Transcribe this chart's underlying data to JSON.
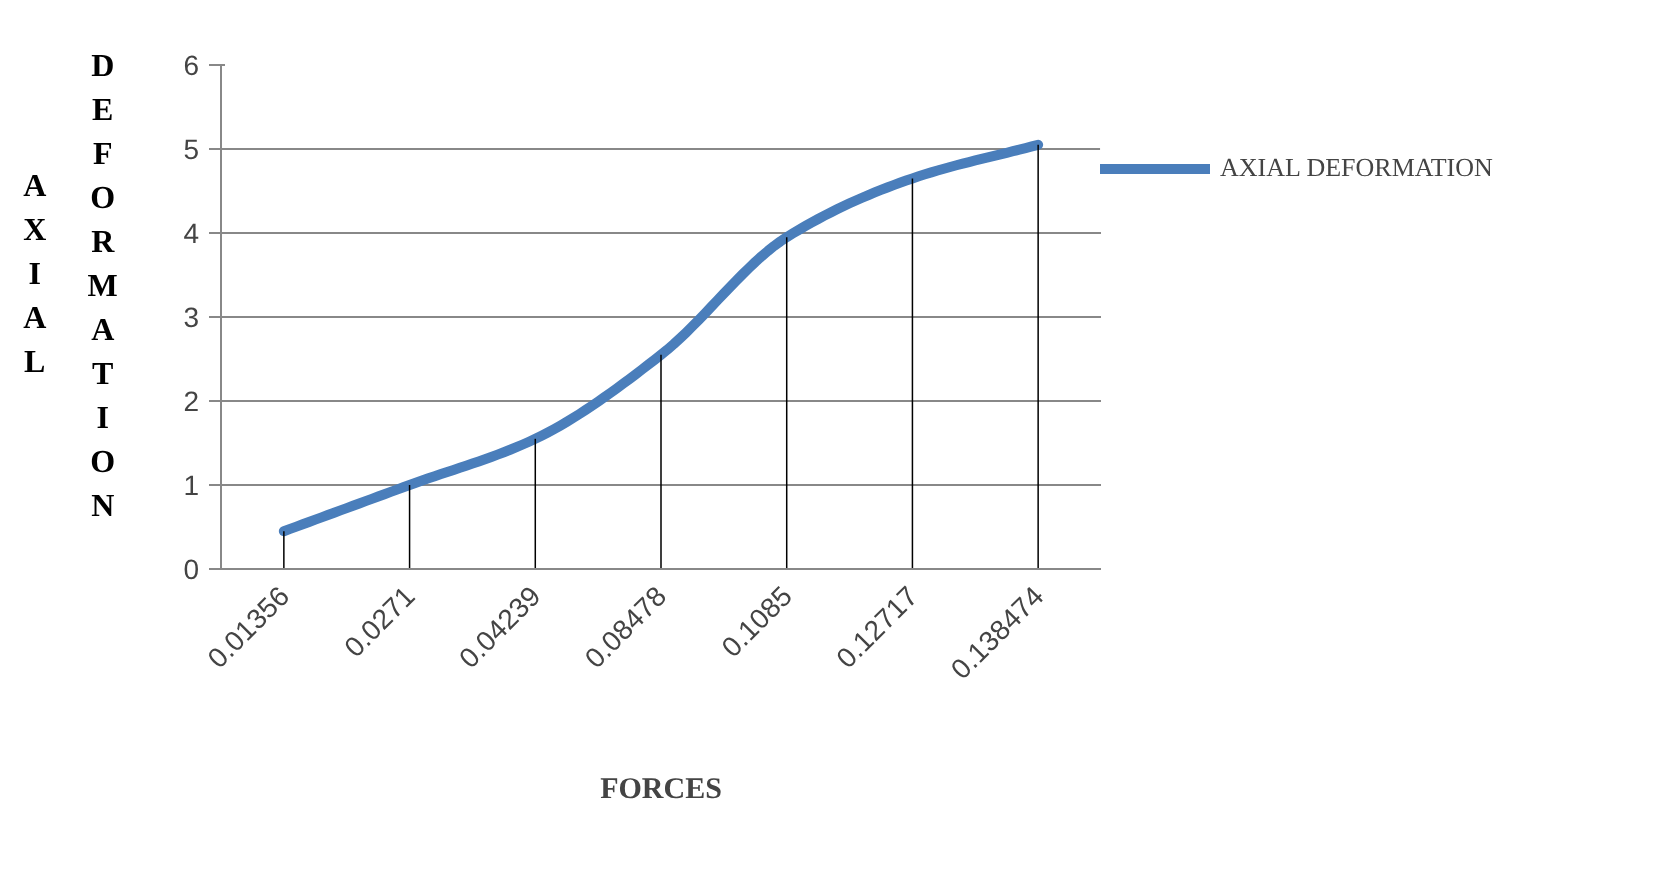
{
  "chart_data": {
    "type": "line",
    "xlabel": "FORCES",
    "ylabel": "AXIAL DEFORMATION",
    "categories": [
      "0.01356",
      "0.0271",
      "0.04239",
      "0.08478",
      "0.1085",
      "0.12717",
      "0.138474"
    ],
    "series": [
      {
        "name": "AXIAL DEFORMATION",
        "color": "#4a7ebb",
        "values": [
          0.45,
          1.0,
          1.55,
          2.55,
          3.95,
          4.65,
          5.05
        ]
      },
      {
        "type": "bar",
        "color": "#000000",
        "values": [
          0.45,
          1.0,
          1.55,
          2.55,
          3.95,
          4.65,
          5.05
        ]
      }
    ],
    "ylim": [
      0,
      6
    ],
    "yticks": [
      0,
      1,
      2,
      3,
      4,
      5,
      6
    ],
    "grid": "y",
    "legend": "right"
  }
}
